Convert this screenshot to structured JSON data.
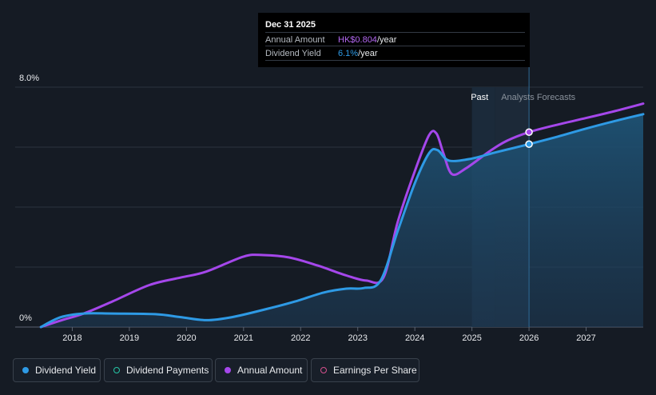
{
  "tooltip": {
    "date": "Dec 31 2025",
    "rows": [
      {
        "label": "Annual Amount",
        "value": "HK$0.804",
        "unit": "/year"
      },
      {
        "label": "Dividend Yield",
        "value": "6.1%",
        "unit": "/year"
      }
    ]
  },
  "legend": {
    "items": [
      {
        "label": "Dividend Yield",
        "color": "#2e9ae5",
        "filled": true
      },
      {
        "label": "Dividend Payments",
        "color": "#26c6a6",
        "filled": false
      },
      {
        "label": "Annual Amount",
        "color": "#a547eb",
        "filled": true
      },
      {
        "label": "Earnings Per Share",
        "color": "#d6518e",
        "filled": false
      }
    ]
  },
  "chart_data": {
    "type": "line",
    "title": "",
    "xlabel": "",
    "ylabel": "",
    "x_ticks": [
      "2018",
      "2019",
      "2020",
      "2021",
      "2022",
      "2023",
      "2024",
      "2025",
      "2026",
      "2027"
    ],
    "y_ticks": [
      "0%",
      "8.0%"
    ],
    "xlim": [
      2017.0,
      2028.0
    ],
    "ylim": [
      0,
      8.0
    ],
    "regions": {
      "past_label": "Past",
      "forecast_label": "Analysts Forecasts",
      "forecast_start": 2025.4,
      "highlight_year": 2026.0
    },
    "series": [
      {
        "name": "Dividend Yield",
        "color": "#2e9ae5",
        "x": [
          2017.45,
          2017.8,
          2018.2,
          2018.7,
          2019.45,
          2019.9,
          2020.35,
          2020.8,
          2021.4,
          2021.9,
          2022.4,
          2022.8,
          2023.1,
          2023.4,
          2023.7,
          2024.0,
          2024.25,
          2024.4,
          2024.6,
          2025.0,
          2025.4,
          2026.0,
          2026.5,
          2027.0,
          2027.5,
          2028.0
        ],
        "y": [
          0.0,
          0.33,
          0.45,
          0.45,
          0.43,
          0.33,
          0.23,
          0.33,
          0.6,
          0.85,
          1.15,
          1.28,
          1.3,
          1.55,
          3.2,
          4.8,
          5.8,
          5.9,
          5.55,
          5.62,
          5.82,
          6.1,
          6.35,
          6.62,
          6.87,
          7.1
        ]
      },
      {
        "name": "Annual Amount",
        "color": "#a547eb",
        "x": [
          2017.45,
          2017.8,
          2018.2,
          2018.7,
          2019.35,
          2019.9,
          2020.35,
          2021.0,
          2021.35,
          2021.8,
          2022.3,
          2022.8,
          2023.15,
          2023.45,
          2023.7,
          2024.0,
          2024.25,
          2024.38,
          2024.5,
          2024.65,
          2024.9,
          2025.3,
          2025.6,
          2026.0,
          2026.5,
          2027.0,
          2027.5,
          2028.0
        ],
        "y": [
          0.0,
          0.22,
          0.45,
          0.85,
          1.4,
          1.65,
          1.85,
          2.35,
          2.4,
          2.32,
          2.05,
          1.72,
          1.55,
          1.65,
          3.5,
          5.2,
          6.4,
          6.45,
          5.8,
          5.1,
          5.3,
          5.85,
          6.2,
          6.5,
          6.75,
          6.97,
          7.2,
          7.45
        ]
      }
    ],
    "highlight_points": [
      {
        "series": "Annual Amount",
        "x": 2026.0,
        "y": 6.5
      },
      {
        "series": "Dividend Yield",
        "x": 2026.0,
        "y": 6.1
      }
    ]
  }
}
